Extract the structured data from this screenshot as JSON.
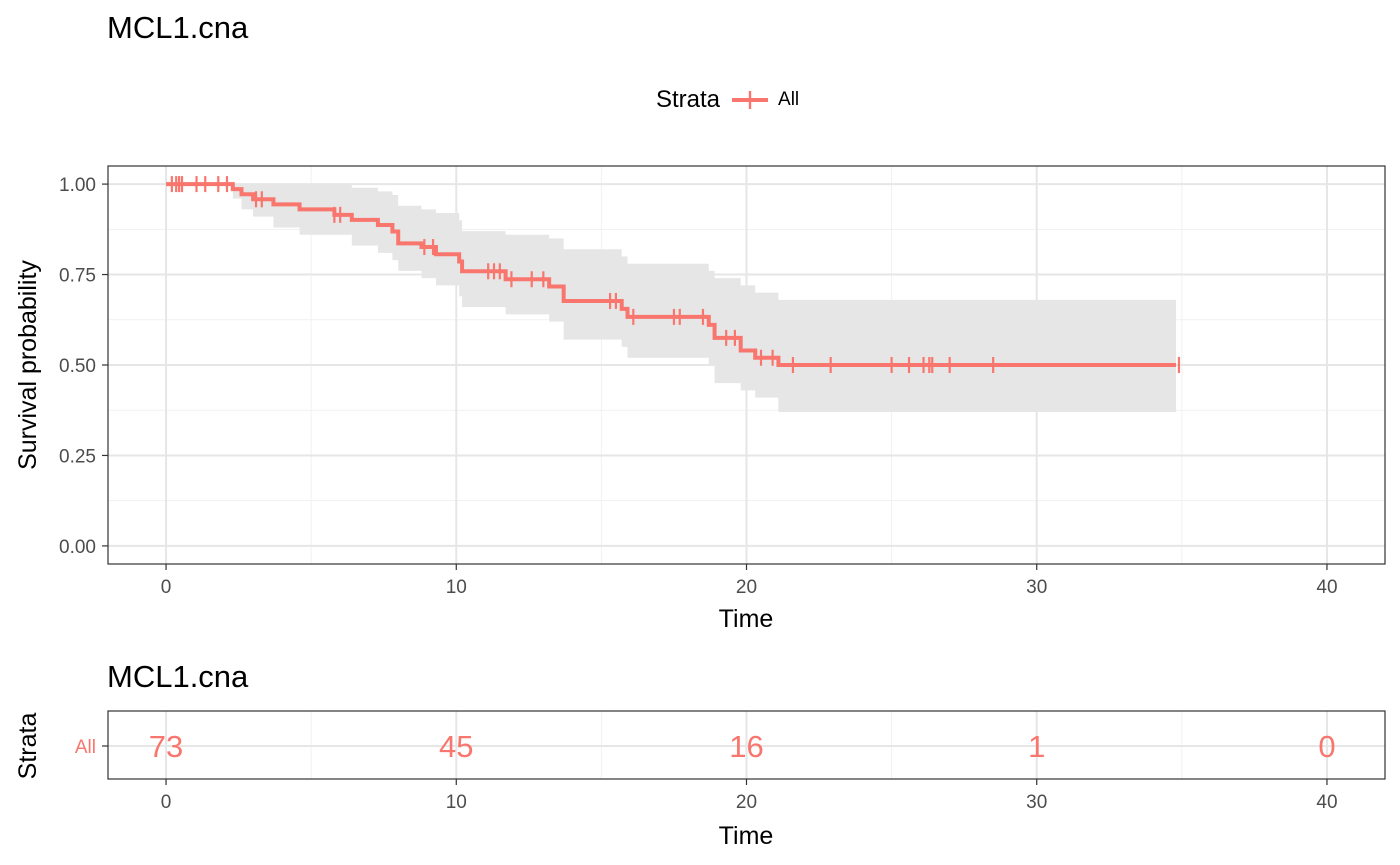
{
  "colors": {
    "series": "#F8766D",
    "ci_band": "#E6E6E6",
    "grid_major": "#E6E6E6",
    "grid_minor": "#F1F1F1",
    "panel_border": "#333333",
    "tick_label": "#4D4D4D"
  },
  "chart_data": [
    {
      "type": "line",
      "subtype": "kaplan-meier",
      "title": "MCL1.cna",
      "xlabel": "Time",
      "ylabel": "Survival probability",
      "xlim": [
        -2,
        42
      ],
      "ylim": [
        -0.05,
        1.05
      ],
      "x_ticks": [
        0,
        10,
        20,
        30,
        40
      ],
      "x_tick_labels": [
        "0",
        "10",
        "20",
        "30",
        "40"
      ],
      "y_ticks": [
        0,
        0.25,
        0.5,
        0.75,
        1
      ],
      "y_tick_labels": [
        "0.00",
        "0.25",
        "0.50",
        "0.75",
        "1.00"
      ],
      "grid": true,
      "legend": {
        "title": "Strata",
        "position": "top"
      },
      "series": [
        {
          "name": "All",
          "color": "#F8766D",
          "steps": [
            [
              0,
              1.0
            ],
            [
              2.3,
              0.986
            ],
            [
              2.6,
              0.972
            ],
            [
              3.0,
              0.958
            ],
            [
              3.7,
              0.944
            ],
            [
              4.6,
              0.93
            ],
            [
              5.8,
              0.915
            ],
            [
              6.4,
              0.901
            ],
            [
              7.3,
              0.887
            ],
            [
              7.8,
              0.869
            ],
            [
              8.0,
              0.836
            ],
            [
              8.8,
              0.826
            ],
            [
              9.3,
              0.806
            ],
            [
              10.1,
              0.786
            ],
            [
              10.2,
              0.759
            ],
            [
              11.7,
              0.737
            ],
            [
              13.2,
              0.717
            ],
            [
              13.7,
              0.677
            ],
            [
              15.7,
              0.655
            ],
            [
              15.9,
              0.633
            ],
            [
              18.7,
              0.611
            ],
            [
              18.9,
              0.575
            ],
            [
              19.8,
              0.54
            ],
            [
              20.3,
              0.52
            ],
            [
              21.1,
              0.5
            ],
            [
              34.8,
              0.5
            ]
          ],
          "censor_times": [
            0.2,
            0.35,
            0.45,
            0.55,
            1.05,
            1.35,
            1.8,
            2.1,
            3.1,
            3.3,
            5.8,
            6.0,
            8.9,
            9.2,
            11.1,
            11.3,
            11.5,
            11.9,
            12.6,
            13.0,
            15.3,
            15.5,
            16.1,
            17.5,
            17.7,
            18.5,
            19.3,
            19.6,
            20.5,
            20.9,
            21.6,
            22.9,
            25.0,
            25.6,
            26.1,
            26.3,
            26.4,
            27.0,
            28.5,
            34.9
          ],
          "ci_steps": [
            [
              0,
              1.0,
              1.0
            ],
            [
              2.3,
              0.96,
              1.0
            ],
            [
              2.6,
              0.93,
              1.0
            ],
            [
              3.0,
              0.91,
              1.0
            ],
            [
              3.7,
              0.88,
              1.0
            ],
            [
              4.6,
              0.86,
              1.0
            ],
            [
              6.4,
              0.83,
              0.99
            ],
            [
              7.3,
              0.81,
              0.98
            ],
            [
              7.8,
              0.79,
              0.97
            ],
            [
              8.0,
              0.76,
              0.94
            ],
            [
              8.8,
              0.74,
              0.93
            ],
            [
              9.3,
              0.72,
              0.92
            ],
            [
              10.1,
              0.69,
              0.9
            ],
            [
              10.2,
              0.66,
              0.87
            ],
            [
              11.7,
              0.64,
              0.86
            ],
            [
              13.2,
              0.62,
              0.85
            ],
            [
              13.7,
              0.57,
              0.82
            ],
            [
              15.7,
              0.55,
              0.8
            ],
            [
              15.9,
              0.52,
              0.78
            ],
            [
              18.7,
              0.5,
              0.76
            ],
            [
              18.9,
              0.45,
              0.74
            ],
            [
              19.8,
              0.43,
              0.72
            ],
            [
              20.3,
              0.41,
              0.7
            ],
            [
              21.1,
              0.37,
              0.68
            ],
            [
              34.8,
              0.37,
              0.68
            ]
          ]
        }
      ]
    },
    {
      "type": "table",
      "subtype": "risk-table",
      "title": "MCL1.cna",
      "xlabel": "Time",
      "ylabel": "Strata",
      "xlim": [
        -2,
        42
      ],
      "x_ticks": [
        0,
        10,
        20,
        30,
        40
      ],
      "x_tick_labels": [
        "0",
        "10",
        "20",
        "30",
        "40"
      ],
      "rows": [
        {
          "strata": "All",
          "times": [
            0,
            10,
            20,
            30,
            40
          ],
          "values": [
            "73",
            "45",
            "16",
            "1",
            "0"
          ]
        }
      ]
    }
  ]
}
